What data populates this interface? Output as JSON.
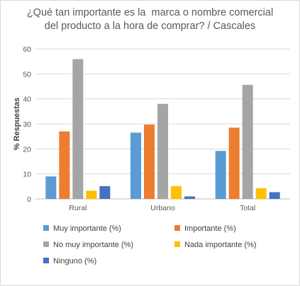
{
  "chart_data": {
    "type": "bar",
    "title_lines": [
      "¿Qué tan importante es la  marca o nombre comercial",
      "del producto a la hora de comprar? / Cascales"
    ],
    "xlabel": "",
    "ylabel": "% Respuestas",
    "ylim": [
      0,
      60
    ],
    "yticks": [
      0,
      10,
      20,
      30,
      40,
      50,
      60
    ],
    "grid": true,
    "legend_position": "bottom",
    "categories": [
      "Rural",
      "Urbano",
      "Total"
    ],
    "series": [
      {
        "name": "Muy importante (%)",
        "color": "#5b9bd5",
        "values": [
          9,
          26.5,
          19.2
        ]
      },
      {
        "name": "Importante (%)",
        "color": "#ed7d31",
        "values": [
          27,
          29.7,
          28.5
        ]
      },
      {
        "name": "No muy importante (%)",
        "color": "#a5a5a5",
        "values": [
          55.9,
          38,
          45.6
        ]
      },
      {
        "name": "Nada importante (%)",
        "color": "#ffc000",
        "values": [
          3.3,
          5.1,
          4.3
        ]
      },
      {
        "name": "Ninguno (%)",
        "color": "#4472c4",
        "values": [
          5.1,
          1,
          2.7
        ]
      }
    ]
  }
}
